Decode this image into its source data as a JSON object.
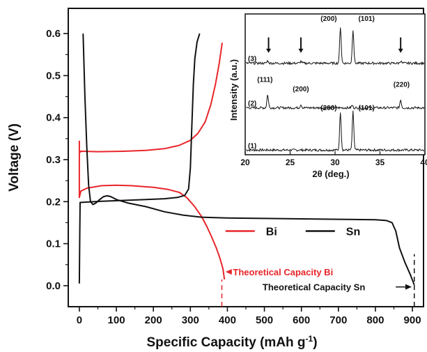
{
  "chart_data": [
    {
      "type": "line",
      "xlabel": "Specific Capacity (mAh g",
      "xlabel_sup": "-1",
      "xlabel_close": ")",
      "ylabel": "Voltage (V)",
      "xlim": [
        -30,
        930
      ],
      "ylim": [
        -0.05,
        0.66
      ],
      "xticks": [
        0,
        100,
        200,
        300,
        400,
        500,
        600,
        700,
        800,
        900
      ],
      "xtick_labels": [
        "0",
        "100",
        "200",
        "300",
        "400",
        "500",
        "600",
        "700",
        "800",
        "900"
      ],
      "yticks": [
        0.0,
        0.1,
        0.2,
        0.3,
        0.4,
        0.5,
        0.6
      ],
      "ytick_labels": [
        "0.0",
        "0.1",
        "0.2",
        "0.3",
        "0.4",
        "0.5",
        "0.6"
      ],
      "legend": {
        "placement": "lower-center",
        "entries": [
          {
            "label": "Bi",
            "color": "#e8262a"
          },
          {
            "label": "Sn",
            "color": "#111111"
          }
        ]
      },
      "series": [
        {
          "name": "Bi",
          "color": "#e8262a",
          "segments": [
            [
              [
                0,
                0.345
              ],
              [
                0,
                0.21
              ],
              [
                4,
                0.225
              ],
              [
                20,
                0.232
              ],
              [
                60,
                0.238
              ],
              [
                100,
                0.239
              ],
              [
                140,
                0.238
              ],
              [
                200,
                0.234
              ],
              [
                240,
                0.229
              ],
              [
                270,
                0.222
              ],
              [
                290,
                0.21
              ],
              [
                310,
                0.19
              ],
              [
                330,
                0.165
              ],
              [
                345,
                0.14
              ],
              [
                358,
                0.115
              ],
              [
                370,
                0.09
              ],
              [
                380,
                0.065
              ],
              [
                388,
                0.04
              ],
              [
                392,
                0.015
              ]
            ],
            [
              [
                0,
                0.318
              ],
              [
                3,
                0.32
              ],
              [
                50,
                0.319
              ],
              [
                120,
                0.32
              ],
              [
                180,
                0.322
              ],
              [
                230,
                0.326
              ],
              [
                270,
                0.334
              ],
              [
                300,
                0.346
              ],
              [
                320,
                0.362
              ],
              [
                340,
                0.39
              ],
              [
                355,
                0.43
              ],
              [
                368,
                0.48
              ],
              [
                378,
                0.53
              ],
              [
                386,
                0.578
              ]
            ]
          ]
        },
        {
          "name": "Sn",
          "color": "#111111",
          "segments": [
            [
              [
                0,
                0.005
              ],
              [
                1,
                0.12
              ],
              [
                2,
                0.198
              ],
              [
                20,
                0.199
              ],
              [
                60,
                0.201
              ],
              [
                120,
                0.203
              ],
              [
                180,
                0.205
              ],
              [
                230,
                0.207
              ],
              [
                265,
                0.21
              ],
              [
                285,
                0.215
              ],
              [
                295,
                0.23
              ],
              [
                300,
                0.28
              ],
              [
                304,
                0.38
              ],
              [
                308,
                0.48
              ],
              [
                312,
                0.54
              ],
              [
                318,
                0.58
              ],
              [
                325,
                0.6
              ]
            ],
            [
              [
                10,
                0.6
              ],
              [
                15,
                0.45
              ],
              [
                20,
                0.33
              ],
              [
                25,
                0.24
              ],
              [
                30,
                0.2
              ],
              [
                37,
                0.193
              ],
              [
                45,
                0.197
              ],
              [
                55,
                0.205
              ],
              [
                65,
                0.212
              ],
              [
                75,
                0.214
              ],
              [
                85,
                0.212
              ],
              [
                100,
                0.205
              ],
              [
                130,
                0.197
              ],
              [
                180,
                0.188
              ],
              [
                230,
                0.176
              ],
              [
                280,
                0.168
              ],
              [
                330,
                0.163
              ],
              [
                400,
                0.161
              ],
              [
                500,
                0.16
              ],
              [
                600,
                0.159
              ],
              [
                700,
                0.158
              ],
              [
                800,
                0.157
              ],
              [
                830,
                0.155
              ],
              [
                845,
                0.15
              ],
              [
                855,
                0.13
              ],
              [
                865,
                0.09
              ],
              [
                880,
                0.055
              ],
              [
                895,
                0.025
              ],
              [
                905,
                0.002
              ]
            ]
          ]
        }
      ],
      "reference_lines": [
        {
          "x": 385,
          "y_from": -0.05,
          "y_to": 0.015,
          "color": "#e8262a",
          "dash": true
        },
        {
          "x": 905,
          "y_from": -0.05,
          "y_to": 0.075,
          "color": "#111111",
          "dash": true
        }
      ],
      "annotations": [
        {
          "text": "Theoretical Capacity Bi",
          "color": "#e8262a",
          "x": 415,
          "y": 0.033,
          "arrow_to_x": 395,
          "arrow_from_x": 412
        },
        {
          "text": "Theoretical Capacity Sn",
          "color": "#111111",
          "x": 495,
          "y": -0.003,
          "arrow_from_x": 855,
          "arrow_to_x": 898
        }
      ]
    },
    {
      "type": "line",
      "xlabel": "2θ (deg.)",
      "ylabel": "Intensity (a.u.)",
      "xlim": [
        20,
        40
      ],
      "ylim": [
        0,
        3
      ],
      "xticks": [
        20,
        25,
        30,
        35,
        40
      ],
      "xtick_labels": [
        "20",
        "25",
        "30",
        "35",
        "40"
      ],
      "series": [
        {
          "label": "(1)",
          "baseline": 0.1,
          "peaks": [
            [
              30.6,
              0.82
            ],
            [
              32.0,
              0.82
            ]
          ]
        },
        {
          "label": "(2)",
          "baseline": 1.0,
          "peaks": [
            [
              22.5,
              0.28
            ],
            [
              26.2,
              0.07
            ],
            [
              31.9,
              0.05
            ],
            [
              37.3,
              0.17
            ]
          ]
        },
        {
          "label": "(3)",
          "baseline": 1.95,
          "peaks": [
            [
              22.5,
              0.05
            ],
            [
              26.2,
              0.04
            ],
            [
              30.6,
              0.78
            ],
            [
              32.0,
              0.72
            ],
            [
              37.3,
              0.05
            ]
          ]
        }
      ],
      "peak_labels": [
        {
          "text": "(200)",
          "x": 29.3,
          "series": 0,
          "dy": 0.85
        },
        {
          "text": "(101)",
          "x": 33.5,
          "series": 0,
          "dy": 0.85
        },
        {
          "text": "(111)",
          "x": 22.2,
          "series": 1,
          "dy": 0.55
        },
        {
          "text": "(200)",
          "x": 26.2,
          "series": 1,
          "dy": 0.35
        },
        {
          "text": "(220)",
          "x": 37.4,
          "series": 1,
          "dy": 0.45
        },
        {
          "text": "(200)",
          "x": 29.3,
          "series": 2,
          "dy": 0.9
        },
        {
          "text": "(101)",
          "x": 33.5,
          "series": 2,
          "dy": 0.9
        }
      ],
      "markers": [
        22.6,
        26.2,
        37.3
      ]
    }
  ]
}
